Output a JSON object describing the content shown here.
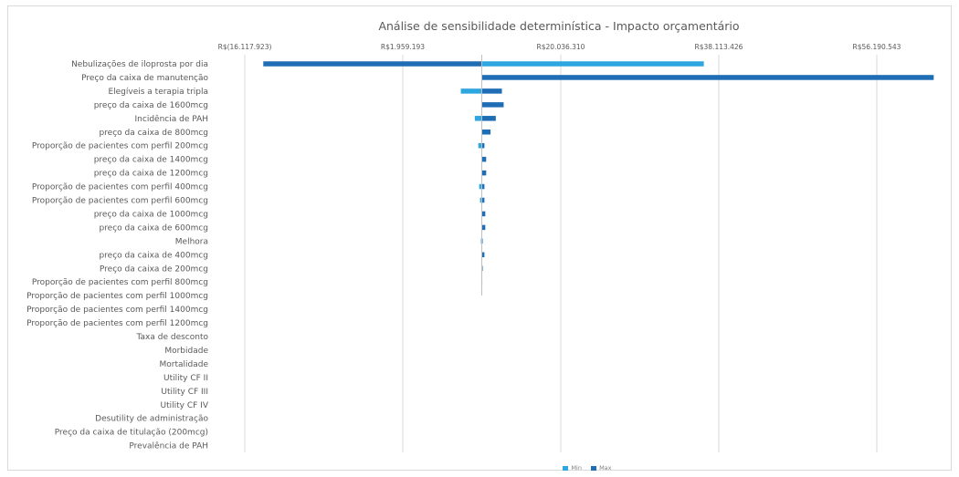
{
  "chart_data": {
    "type": "bar",
    "orientation": "horizontal-tornado",
    "title": "Análise de sensibilidade determinística - Impacto orçamentário",
    "xlabel": "",
    "ylabel": "",
    "x_ticks": [
      "R$(16.117.923)",
      "R$1.959.193",
      "R$20.036.310",
      "R$38.113.426",
      "R$56.190.543"
    ],
    "x_tick_values": [
      -16117923,
      1959193,
      20036310,
      38113426,
      56190543
    ],
    "xlim": [
      -16117923,
      56190543
    ],
    "baseline": 11000000,
    "grid": "vertical",
    "legend_position": "bottom",
    "series": [
      {
        "name": "Min",
        "color": "#2ea6e0"
      },
      {
        "name": "Max",
        "color": "#1f6db4"
      }
    ],
    "categories": [
      "Nebulizações de iloprosta por dia",
      "Preço da caixa de manutenção",
      "Elegíveis a terapia tripla",
      "preço da caixa de 1600mcg",
      "Incidência de PAH",
      "preço da caixa de 800mcg",
      "Proporção de pacientes com perfil 200mcg",
      "preço da caixa de 1400mcg",
      "preço da caixa de 1200mcg",
      "Proporção de pacientes com perfil 400mcg",
      "Proporção de pacientes com perfil 600mcg",
      "preço da caixa de 1000mcg",
      "preço da caixa de 600mcg",
      "Melhora",
      "preço da caixa de 400mcg",
      "Preço da caixa de 200mcg",
      "Proporção de pacientes com perfil 800mcg",
      "Proporção de pacientes com perfil 1000mcg",
      "Proporção de pacientes com perfil 1400mcg",
      "Proporção de pacientes com perfil 1200mcg",
      "Taxa de desconto",
      "Morbidade",
      "Mortalidade",
      "Utility CF II",
      "Utility CF III",
      "Utility CF IV",
      "Desutility de administração",
      "Preço da caixa de titulação (200mcg)",
      "Prevalência de PAH"
    ],
    "min_values": [
      36400000,
      11000000,
      8600000,
      11000000,
      10200000,
      11000000,
      10600000,
      11000000,
      11000000,
      10700000,
      10800000,
      11000000,
      11000000,
      10900000,
      11000000,
      11000000,
      10950000,
      11000000,
      11000000,
      11000000,
      11000000,
      11000000,
      11000000,
      11000000,
      11000000,
      11000000,
      11000000,
      11000000,
      11000000
    ],
    "max_values": [
      -14000000,
      62700000,
      13300000,
      13500000,
      12600000,
      12000000,
      11300000,
      11500000,
      11500000,
      11300000,
      11300000,
      11400000,
      11400000,
      11100000,
      11300000,
      11100000,
      11000000,
      11000000,
      11000000,
      11000000,
      11000000,
      11000000,
      11000000,
      11000000,
      11000000,
      11000000,
      11000000,
      11000000,
      11000000
    ]
  }
}
